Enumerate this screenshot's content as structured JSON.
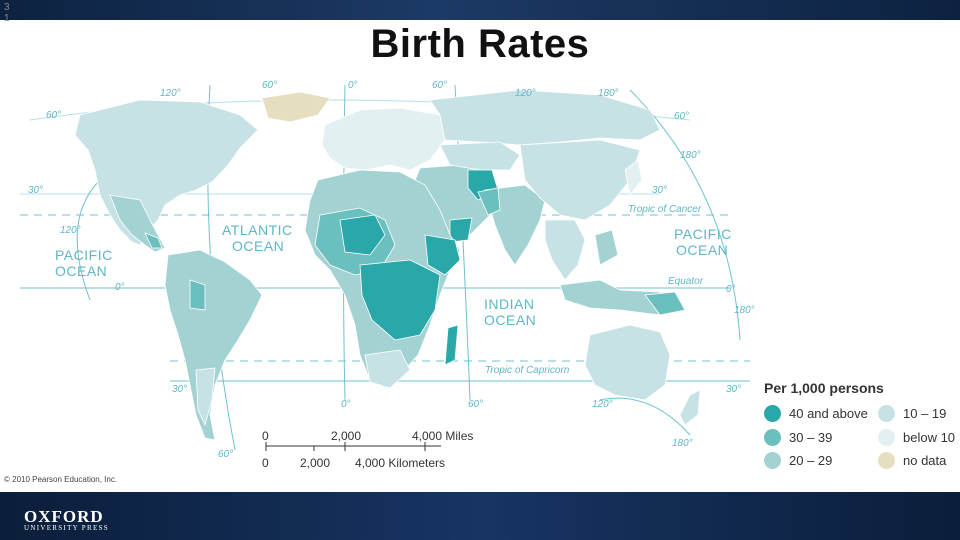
{
  "slide": {
    "number": "3 1",
    "title": "Birth Rates"
  },
  "map": {
    "ocean_labels": [
      {
        "text": "PACIFIC\nOCEAN"
      },
      {
        "text": "ATLANTIC\nOCEAN"
      },
      {
        "text": "INDIAN\nOCEAN"
      },
      {
        "text": "PACIFIC\nOCEAN"
      }
    ],
    "line_labels": {
      "tropic_of_cancer": "Tropic of Cancer",
      "equator": "Equator",
      "tropic_of_capricorn": "Tropic of Capricorn"
    },
    "graticule_labels": [
      "120°",
      "60°",
      "0°",
      "60°",
      "120°",
      "180°",
      "60°",
      "60°",
      "180°",
      "30°",
      "30°",
      "120°",
      "0°",
      "0°",
      "180°",
      "30°",
      "30°",
      "0°",
      "60°",
      "120°",
      "180°",
      "60°"
    ],
    "colors": {
      "c40_plus": "#2aa7a9",
      "c30_39": "#6bbfbe",
      "c20_29": "#a3d2d3",
      "c10_19": "#c7e2e5",
      "below10": "#e2f0f2",
      "no_data": "#e5dfc0",
      "lines": "#6fc1cf"
    }
  },
  "legend": {
    "title": "Per 1,000 persons",
    "items": [
      {
        "label": "40 and above",
        "color": "#2aa7a9"
      },
      {
        "label": "30 – 39",
        "color": "#6bbfbe"
      },
      {
        "label": "20 – 29",
        "color": "#a3d2d3"
      },
      {
        "label": "10 – 19",
        "color": "#c7e2e5"
      },
      {
        "label": "below 10",
        "color": "#e2f0f2"
      },
      {
        "label": "no data",
        "color": "#e5dfc0"
      }
    ]
  },
  "scale": {
    "miles": [
      "0",
      "2,000",
      "4,000 Miles"
    ],
    "kilometers": [
      "0",
      "2,000",
      "4,000 Kilometers"
    ]
  },
  "footer": {
    "copyright": "© 2010 Pearson Education, Inc.",
    "publisher": "OXFORD",
    "publisher_sub": "UNIVERSITY PRESS"
  }
}
